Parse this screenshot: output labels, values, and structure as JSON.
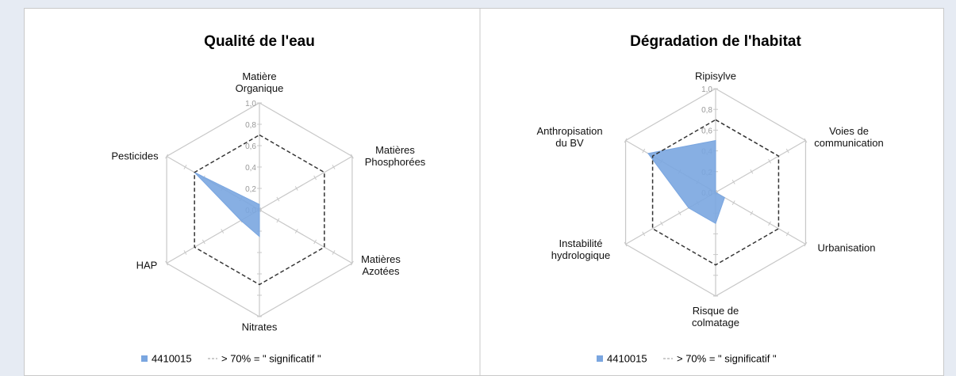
{
  "chart_data": [
    {
      "type": "radar",
      "title": "Qualité de l'eau",
      "categories": [
        "Matière Organique",
        "Matières Phosphorées",
        "Matières Azotées",
        "Nitrates",
        "HAP",
        "Pesticides"
      ],
      "series": [
        {
          "name": "4410015",
          "color": "#7aa6e0",
          "values": [
            0.05,
            0,
            0,
            0.25,
            0.2,
            0.7
          ]
        },
        {
          "name": "> 70% = \" significatif \"",
          "color": "#333333",
          "values": [
            0.7,
            0.7,
            0.7,
            0.7,
            0.7,
            0.7
          ]
        }
      ],
      "ylim": [
        0,
        1
      ],
      "yticks": [
        {
          "value": 0,
          "label": "0,0"
        },
        {
          "value": 0.2,
          "label": "0,2"
        },
        {
          "value": 0.4,
          "label": "0,4"
        },
        {
          "value": 0.6,
          "label": "0,6"
        },
        {
          "value": 0.8,
          "label": "0,8"
        },
        {
          "value": 1,
          "label": "1,0"
        }
      ]
    },
    {
      "type": "radar",
      "title": "Dégradation de l'habitat",
      "categories": [
        "Ripisylve",
        "Voies de communication",
        "Urbanisation",
        "Risque de colmatage",
        "Instabilité hydrologique",
        "Anthropisation du BV"
      ],
      "series": [
        {
          "name": "4410015",
          "color": "#7aa6e0",
          "values": [
            0.5,
            0,
            0.1,
            0.3,
            0.3,
            0.75
          ]
        },
        {
          "name": "> 70% = \" significatif \"",
          "color": "#333333",
          "values": [
            0.7,
            0.7,
            0.7,
            0.7,
            0.7,
            0.7
          ]
        }
      ],
      "ylim": [
        0,
        1
      ],
      "yticks": [
        {
          "value": 0,
          "label": "0,0"
        },
        {
          "value": 0.2,
          "label": "0,2"
        },
        {
          "value": 0.4,
          "label": "0,4"
        },
        {
          "value": 0.6,
          "label": "0,6"
        },
        {
          "value": 0.8,
          "label": "0,8"
        },
        {
          "value": 1,
          "label": "1,0"
        }
      ]
    }
  ]
}
